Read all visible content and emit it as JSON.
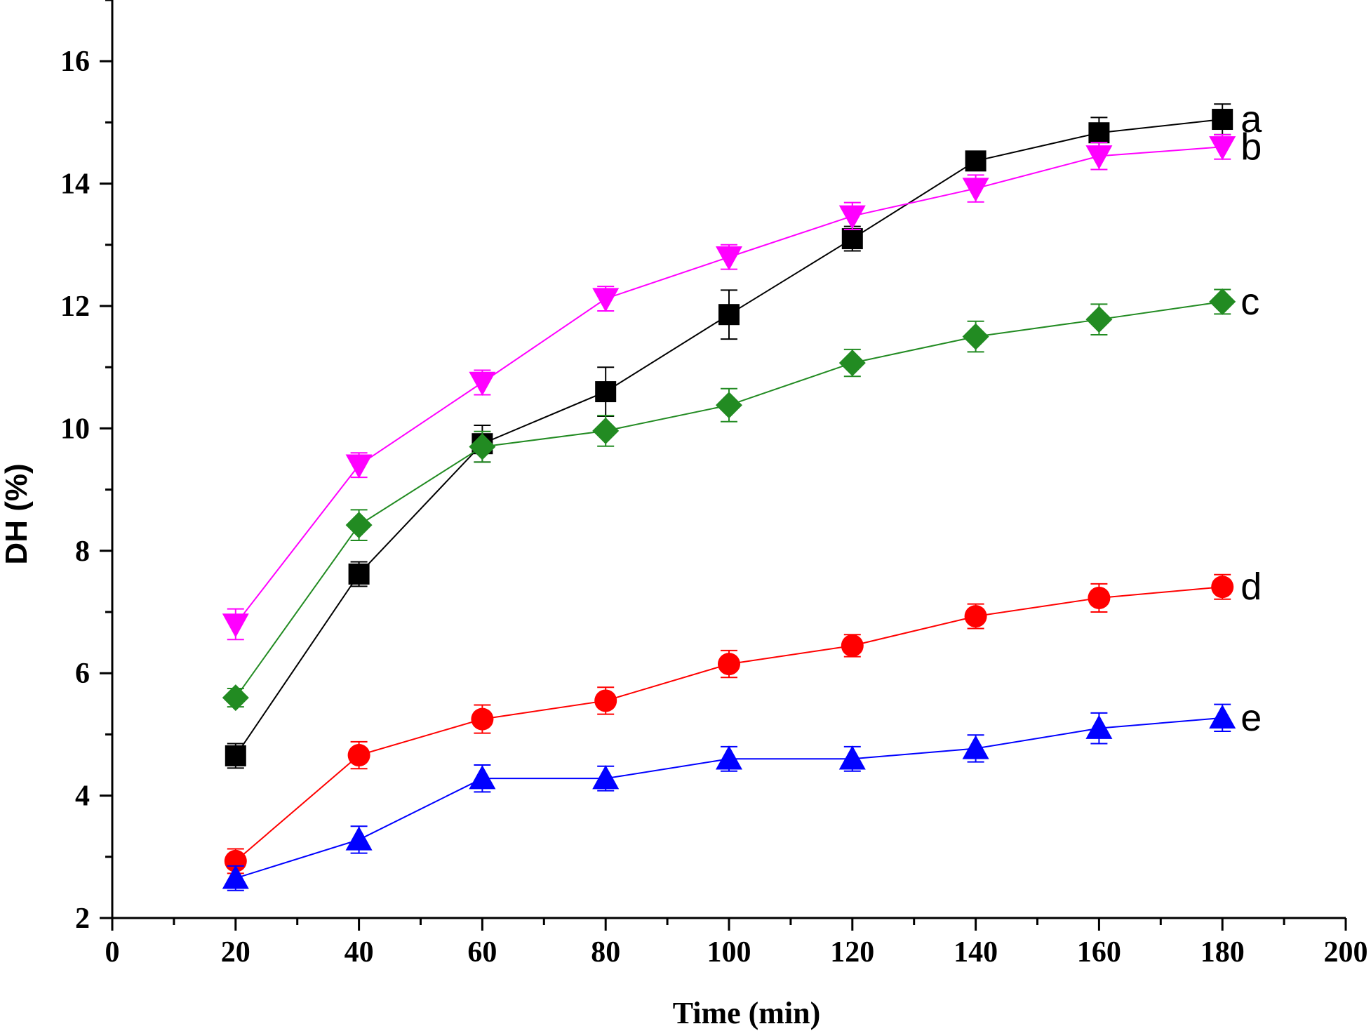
{
  "chart_data": {
    "type": "line",
    "title": "",
    "xlabel": "Time (min)",
    "ylabel": "DH (%)",
    "xlim": [
      0,
      200
    ],
    "ylim": [
      2,
      17
    ],
    "x_ticks": [
      0,
      20,
      40,
      60,
      80,
      100,
      120,
      140,
      160,
      180,
      200
    ],
    "x_tick_labels": [
      "0",
      "20",
      "40",
      "60",
      "80",
      "100",
      "120",
      "140",
      "160",
      "180",
      "200"
    ],
    "y_ticks": [
      2,
      4,
      6,
      8,
      10,
      12,
      14,
      16
    ],
    "y_tick_labels": [
      "2",
      "4",
      "6",
      "8",
      "10",
      "12",
      "14",
      "16"
    ],
    "grid": false,
    "legend": "none; series labeled inline at right end",
    "x": [
      20,
      40,
      60,
      80,
      100,
      120,
      140,
      160,
      180
    ],
    "series": [
      {
        "name": "a",
        "color": "#000000",
        "marker": "square",
        "values": [
          4.65,
          7.62,
          9.75,
          10.6,
          11.86,
          13.1,
          14.37,
          14.83,
          15.05
        ],
        "errors": [
          0.2,
          0.2,
          0.3,
          0.4,
          0.4,
          0.2,
          0.15,
          0.25,
          0.25
        ]
      },
      {
        "name": "b",
        "color": "#ff00ff",
        "marker": "triangle-down",
        "values": [
          6.8,
          9.4,
          10.75,
          12.12,
          12.8,
          13.47,
          13.92,
          14.45,
          14.6
        ],
        "errors": [
          0.25,
          0.2,
          0.2,
          0.2,
          0.2,
          0.22,
          0.22,
          0.22,
          0.2
        ]
      },
      {
        "name": "c",
        "color": "#228B22",
        "marker": "diamond",
        "values": [
          5.6,
          8.42,
          9.7,
          9.96,
          10.38,
          11.07,
          11.5,
          11.78,
          12.07
        ],
        "errors": [
          0.15,
          0.25,
          0.25,
          0.25,
          0.27,
          0.22,
          0.25,
          0.25,
          0.2
        ]
      },
      {
        "name": "d",
        "color": "#ff0000",
        "marker": "circle",
        "values": [
          2.93,
          4.66,
          5.25,
          5.55,
          6.15,
          6.45,
          6.93,
          7.23,
          7.41
        ],
        "errors": [
          0.2,
          0.22,
          0.23,
          0.22,
          0.22,
          0.18,
          0.2,
          0.23,
          0.2
        ]
      },
      {
        "name": "e",
        "color": "#0000ff",
        "marker": "triangle-up",
        "values": [
          2.65,
          3.28,
          4.28,
          4.28,
          4.6,
          4.6,
          4.77,
          5.1,
          5.27
        ],
        "errors": [
          0.2,
          0.22,
          0.22,
          0.2,
          0.2,
          0.2,
          0.22,
          0.25,
          0.22
        ]
      }
    ]
  }
}
